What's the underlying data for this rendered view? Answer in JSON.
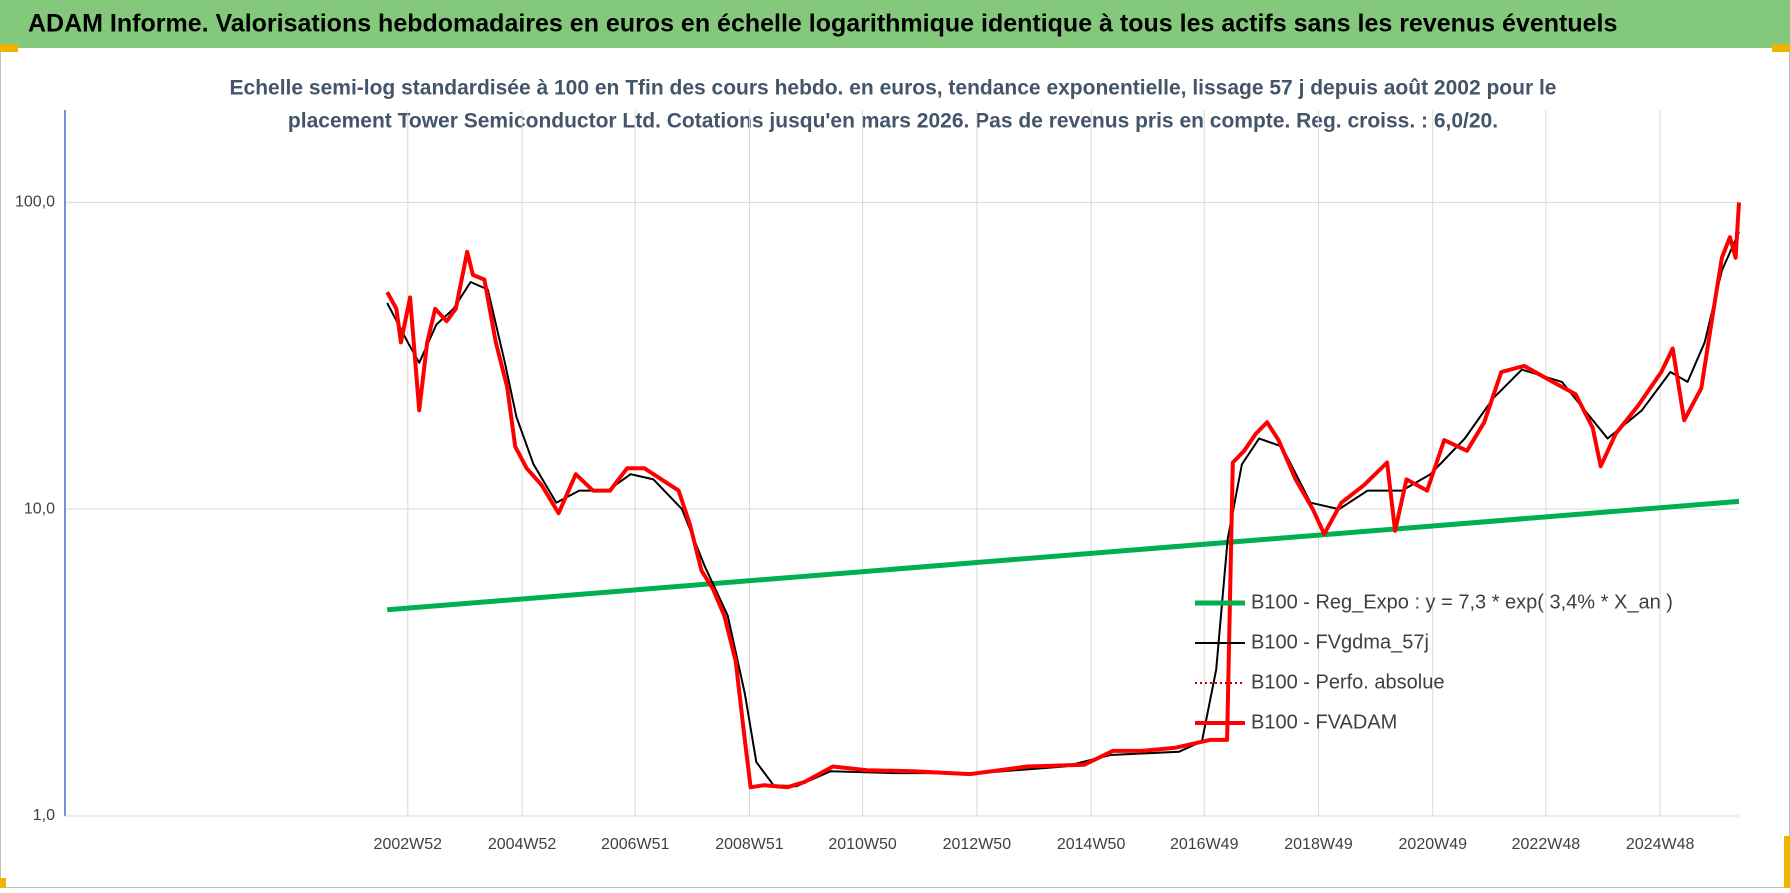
{
  "chart_data": {
    "type": "line",
    "title": "ADAM Informe. Valorisations hebdomadaires en euros en échelle logarithmique identique à tous les actifs sans les revenus éventuels",
    "subtitle": [
      "Echelle semi-log standardisée à 100 en Tfin des cours hebdo. en euros, tendance exponentielle, lissage 57 j depuis août 2002 pour le",
      "placement Tower Semiconductor Ltd. Cotations jusqu'en mars 2026. Pas de revenus pris en compte. Reg. croiss. : 6,0/20."
    ],
    "log_scale_y": true,
    "grid": true,
    "legend": "right",
    "xlim": [
      1997,
      2026.3
    ],
    "xticks": [
      {
        "value": 2003.0,
        "label": "2002W52"
      },
      {
        "value": 2005.0,
        "label": "2004W52"
      },
      {
        "value": 2006.98,
        "label": "2006W51"
      },
      {
        "value": 2008.98,
        "label": "2008W51"
      },
      {
        "value": 2010.96,
        "label": "2010W50"
      },
      {
        "value": 2012.96,
        "label": "2012W50"
      },
      {
        "value": 2014.96,
        "label": "2014W50"
      },
      {
        "value": 2016.94,
        "label": "2016W49"
      },
      {
        "value": 2018.94,
        "label": "2018W49"
      },
      {
        "value": 2020.94,
        "label": "2020W49"
      },
      {
        "value": 2022.92,
        "label": "2022W48"
      },
      {
        "value": 2024.92,
        "label": "2024W48"
      }
    ],
    "ylim": [
      1,
      200
    ],
    "yticks": [
      {
        "value": 1,
        "label": "1,0"
      },
      {
        "value": 10,
        "label": "10,0"
      },
      {
        "value": 100,
        "label": "100,0"
      }
    ],
    "series": [
      {
        "name": "B100 - Reg_Expo : y = 7,3 * exp( 3,4% *  X_an )",
        "color": "#00b050",
        "width": 5,
        "dash": "",
        "x": [
          2002.64,
          2026.3
        ],
        "values": [
          4.7,
          10.6
        ]
      },
      {
        "name": "B100 - FVgdma_57j",
        "color": "#000000",
        "width": 2,
        "dash": "",
        "x": [
          2002.64,
          2003.0,
          2003.2,
          2003.5,
          2003.8,
          2004.1,
          2004.4,
          2004.7,
          2004.9,
          2005.2,
          2005.6,
          2006.0,
          2006.5,
          2006.9,
          2007.3,
          2007.8,
          2008.2,
          2008.6,
          2008.9,
          2009.1,
          2009.4,
          2009.8,
          2010.4,
          2011.5,
          2013.0,
          2014.5,
          2015.3,
          2016.5,
          2016.9,
          2017.15,
          2017.35,
          2017.6,
          2017.9,
          2018.3,
          2018.8,
          2019.3,
          2019.8,
          2020.4,
          2020.9,
          2021.5,
          2022.0,
          2022.5,
          2023.2,
          2023.6,
          2024.0,
          2024.6,
          2025.1,
          2025.4,
          2025.7,
          2026.0,
          2026.3
        ],
        "values": [
          47,
          35,
          30,
          40,
          45,
          55,
          52,
          30,
          20,
          14,
          10.5,
          11.5,
          11.5,
          13,
          12.5,
          10,
          6.5,
          4.5,
          2.5,
          1.5,
          1.26,
          1.25,
          1.4,
          1.38,
          1.38,
          1.45,
          1.58,
          1.62,
          1.75,
          3,
          8,
          14,
          17,
          16,
          10.5,
          10,
          11.5,
          11.5,
          13,
          17,
          23,
          28.5,
          26,
          21,
          17,
          21,
          28,
          26,
          35,
          60,
          80
        ]
      },
      {
        "name": "B100 - Perfo. absolue",
        "color": "#c00000",
        "width": 2,
        "dash": "2 3",
        "x": [],
        "values": []
      },
      {
        "name": "B100 - FVADAM",
        "color": "#ff0000",
        "width": 4,
        "dash": "",
        "x": [
          2002.64,
          2002.8,
          2002.88,
          2003.04,
          2003.2,
          2003.34,
          2003.48,
          2003.68,
          2003.84,
          2004.04,
          2004.14,
          2004.34,
          2004.54,
          2004.74,
          2004.88,
          2005.08,
          2005.34,
          2005.64,
          2005.94,
          2006.24,
          2006.54,
          2006.84,
          2007.14,
          2007.44,
          2007.74,
          2007.94,
          2008.14,
          2008.34,
          2008.54,
          2008.74,
          2008.88,
          2009.0,
          2009.24,
          2009.64,
          2009.94,
          2010.44,
          2011.04,
          2011.84,
          2012.84,
          2013.84,
          2014.84,
          2015.34,
          2015.84,
          2016.44,
          2017.04,
          2017.34,
          2017.44,
          2017.64,
          2017.84,
          2018.04,
          2018.24,
          2018.54,
          2018.84,
          2019.04,
          2019.34,
          2019.74,
          2020.14,
          2020.28,
          2020.48,
          2020.84,
          2021.14,
          2021.54,
          2021.84,
          2022.14,
          2022.54,
          2023.04,
          2023.44,
          2023.74,
          2023.88,
          2024.14,
          2024.54,
          2024.94,
          2025.14,
          2025.34,
          2025.64,
          2025.84,
          2026.0,
          2026.14,
          2026.24,
          2026.3
        ],
        "values": [
          51,
          45,
          35,
          49,
          21,
          35,
          45,
          41,
          45,
          69,
          58,
          56,
          35,
          25,
          16,
          13.6,
          12,
          9.7,
          13,
          11.5,
          11.5,
          13.6,
          13.6,
          12.5,
          11.5,
          8.9,
          6.3,
          5.5,
          4.5,
          3.2,
          1.9,
          1.24,
          1.26,
          1.24,
          1.29,
          1.45,
          1.41,
          1.4,
          1.37,
          1.45,
          1.47,
          1.63,
          1.63,
          1.67,
          1.77,
          1.77,
          14.2,
          15.5,
          17.6,
          19.2,
          16.8,
          12.5,
          10,
          8.3,
          10.5,
          12,
          14.2,
          8.5,
          12.5,
          11.5,
          16.8,
          15.5,
          19.2,
          28,
          29.3,
          26,
          23.7,
          18.4,
          13.8,
          17.6,
          21.8,
          28,
          33.4,
          19.5,
          24.8,
          43,
          66,
          77,
          66,
          100
        ]
      }
    ]
  }
}
